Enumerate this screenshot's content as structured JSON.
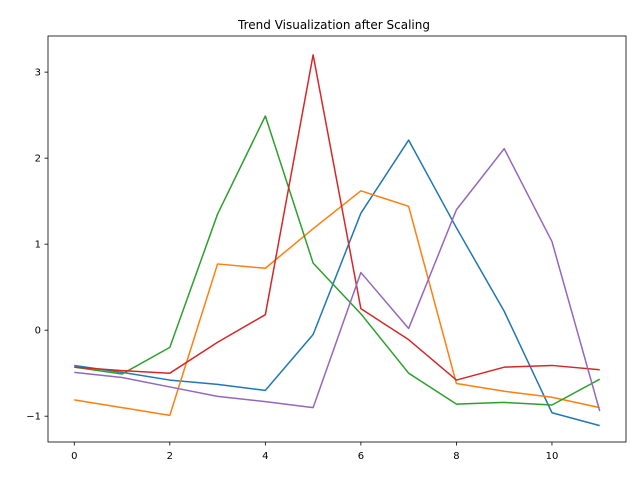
{
  "chart_data": {
    "type": "line",
    "title": "Trend Visualization after Scaling",
    "xlabel": "",
    "ylabel": "",
    "x": [
      0,
      1,
      2,
      3,
      4,
      5,
      6,
      7,
      8,
      9,
      10,
      11
    ],
    "xlim": [
      -0.55,
      11.55
    ],
    "ylim": [
      -1.3,
      3.42
    ],
    "xticks": [
      0,
      2,
      4,
      6,
      8,
      10
    ],
    "yticks": [
      -1,
      0,
      1,
      2,
      3
    ],
    "grid": false,
    "legend": "none",
    "series": [
      {
        "color": "#1f77b4",
        "values": [
          -0.41,
          -0.49,
          -0.58,
          -0.63,
          -0.7,
          -0.05,
          1.36,
          2.21,
          1.19,
          0.22,
          -0.96,
          -1.11
        ]
      },
      {
        "color": "#ff7f0e",
        "values": [
          -0.81,
          -0.9,
          -0.99,
          0.77,
          0.72,
          1.18,
          1.62,
          1.44,
          -0.62,
          -0.71,
          -0.78,
          -0.9
        ]
      },
      {
        "color": "#2ca02c",
        "values": [
          -0.43,
          -0.51,
          -0.2,
          1.35,
          2.49,
          0.78,
          0.19,
          -0.5,
          -0.86,
          -0.84,
          -0.87,
          -0.57
        ]
      },
      {
        "color": "#d62728",
        "values": [
          -0.43,
          -0.47,
          -0.5,
          -0.14,
          0.18,
          3.2,
          0.25,
          -0.11,
          -0.58,
          -0.43,
          -0.41,
          -0.46
        ]
      },
      {
        "color": "#9467bd",
        "values": [
          -0.49,
          -0.55,
          -0.66,
          -0.77,
          -0.83,
          -0.9,
          0.67,
          0.02,
          1.4,
          2.11,
          1.03,
          -0.94
        ]
      }
    ]
  }
}
